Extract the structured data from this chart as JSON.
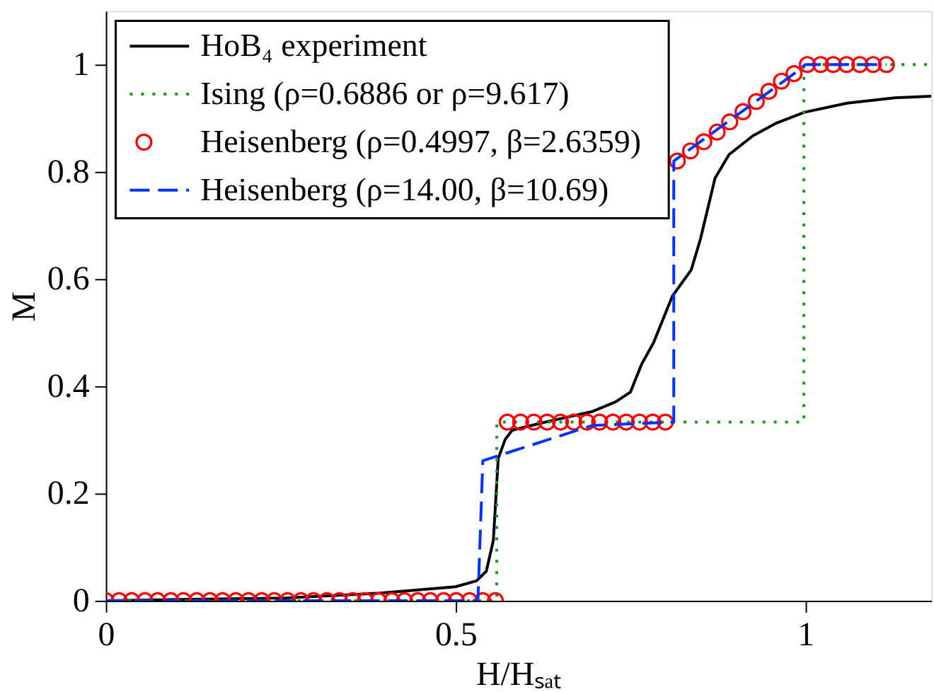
{
  "chart_data": {
    "type": "line",
    "xlabel": "H/Hₛₐₜ",
    "ylabel": "M",
    "xlim": [
      0,
      1.18
    ],
    "ylim": [
      0,
      1.1
    ],
    "xticks": [
      0,
      0.5,
      1
    ],
    "yticks": [
      0,
      0.2,
      0.4,
      0.6,
      0.8,
      1
    ],
    "legend": "top left",
    "series": [
      {
        "name": "HoB₄ experiment",
        "color": "#000000",
        "line_style": "solid",
        "x": [
          0,
          0.256,
          0.392,
          0.5,
          0.53,
          0.544,
          0.554,
          0.561,
          0.571,
          0.581,
          0.628,
          0.696,
          0.729,
          0.75,
          0.766,
          0.783,
          0.81,
          0.837,
          0.85,
          0.871,
          0.891,
          0.925,
          0.959,
          0.999,
          1.06,
          1.128,
          1.18
        ],
        "values": [
          0,
          0.005,
          0.014,
          0.026,
          0.037,
          0.055,
          0.112,
          0.265,
          0.301,
          0.318,
          0.333,
          0.353,
          0.371,
          0.389,
          0.441,
          0.481,
          0.568,
          0.617,
          0.674,
          0.788,
          0.832,
          0.867,
          0.891,
          0.911,
          0.928,
          0.938,
          0.941
        ]
      },
      {
        "name": "Ising (ρ=0.6886 or ρ=9.617)",
        "color": "#1a9a1a",
        "line_style": "dotted",
        "x": [
          0,
          0.559,
          0.559,
          0.998,
          0.998,
          1.18
        ],
        "values": [
          0,
          0,
          0.333,
          0.333,
          1,
          1
        ]
      },
      {
        "name": "Heisenberg (ρ=0.4997, β=2.6359)",
        "type": "scatter",
        "marker": "circle",
        "color": "#ff0000",
        "x": [
          0,
          0.019,
          0.037,
          0.056,
          0.074,
          0.093,
          0.111,
          0.13,
          0.149,
          0.167,
          0.186,
          0.204,
          0.223,
          0.241,
          0.26,
          0.279,
          0.297,
          0.316,
          0.334,
          0.353,
          0.371,
          0.39,
          0.409,
          0.427,
          0.446,
          0.464,
          0.483,
          0.501,
          0.52,
          0.539,
          0.557,
          0.574,
          0.593,
          0.612,
          0.631,
          0.65,
          0.669,
          0.688,
          0.706,
          0.725,
          0.744,
          0.763,
          0.782,
          0.8,
          0.817,
          0.836,
          0.855,
          0.874,
          0.892,
          0.911,
          0.93,
          0.948,
          0.966,
          0.984,
          1.003,
          1.022,
          1.04,
          1.059,
          1.078,
          1.097,
          1.116
        ],
        "values": [
          0,
          0,
          0,
          0,
          0,
          0,
          0,
          0,
          0,
          0,
          0,
          0,
          0,
          0,
          0,
          0,
          0,
          0,
          0,
          0,
          0,
          0,
          0,
          0,
          0,
          0,
          0,
          0,
          0,
          0,
          0,
          0.333,
          0.333,
          0.333,
          0.333,
          0.333,
          0.333,
          0.333,
          0.333,
          0.333,
          0.333,
          0.333,
          0.333,
          0.333,
          0.82,
          0.839,
          0.856,
          0.874,
          0.893,
          0.912,
          0.931,
          0.95,
          0.969,
          0.983,
          1,
          1,
          1,
          1,
          1,
          1,
          1
        ]
      },
      {
        "name": "Heisenberg (ρ=14.00, β=10.69)",
        "color": "#0033ff",
        "line_style": "dashed",
        "x": [
          0,
          0.532,
          0.539,
          0.696,
          0.812,
          0.812,
          0.984,
          1.0,
          1.116
        ],
        "values": [
          0,
          0,
          0.261,
          0.327,
          0.333,
          0.82,
          0.983,
          1,
          1
        ]
      }
    ]
  }
}
